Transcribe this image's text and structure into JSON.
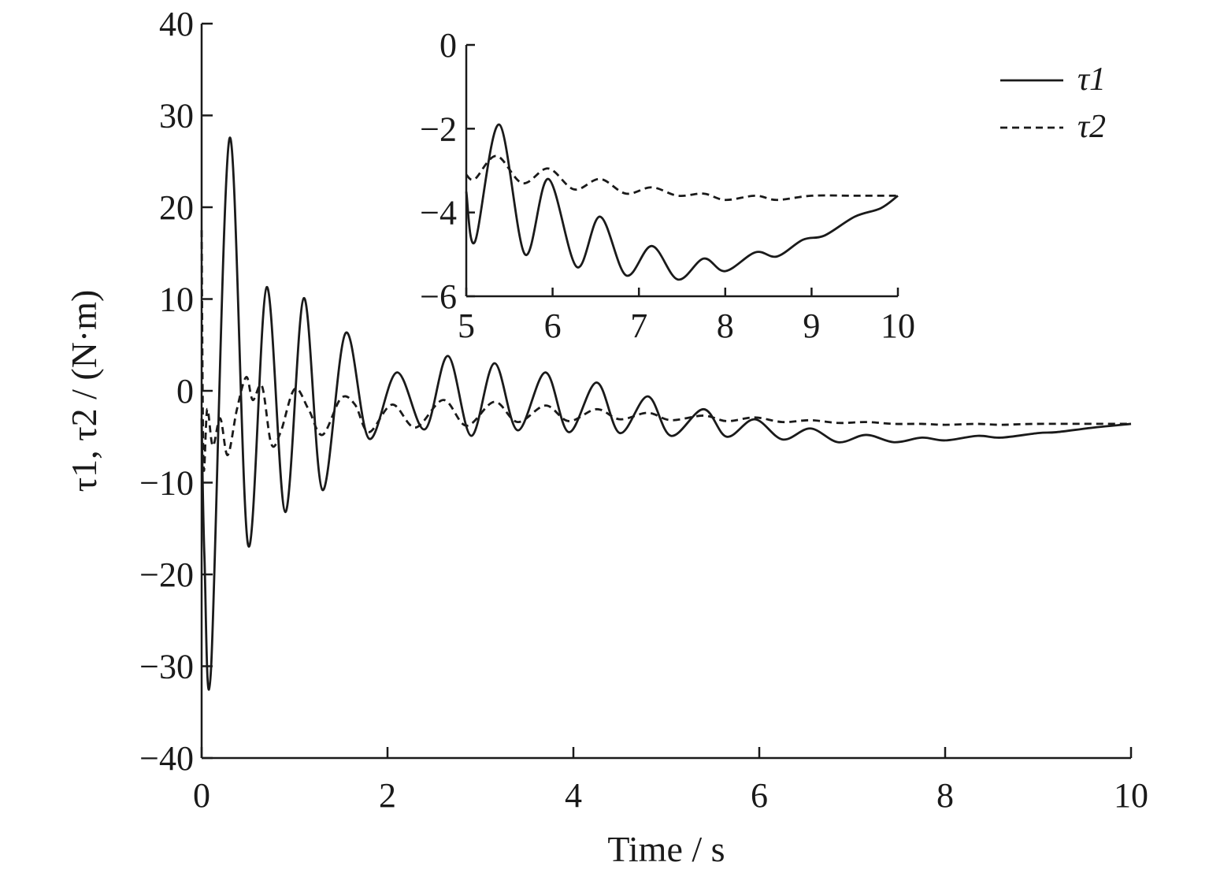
{
  "chart_data": [
    {
      "type": "line",
      "panel": "main",
      "xlabel": "Time / s",
      "ylabel": "τ1, τ2 / (N·m)",
      "xlim": [
        0,
        10
      ],
      "ylim": [
        -40,
        40
      ],
      "xticks": [
        "0",
        "2",
        "4",
        "6",
        "8",
        "10"
      ],
      "yticks": [
        "−40",
        "−30",
        "−20",
        "−10",
        "0",
        "10",
        "20",
        "30",
        "40"
      ],
      "grid": false,
      "legend_position": "top-right",
      "series": [
        {
          "name": "τ1",
          "style": "solid",
          "x": [
            0,
            0.03,
            0.1,
            0.3,
            0.5,
            0.7,
            0.9,
            1.1,
            1.3,
            1.55,
            1.8,
            2.1,
            2.4,
            2.65,
            2.9,
            3.15,
            3.4,
            3.7,
            3.95,
            4.25,
            4.5,
            4.8,
            5.05,
            5.4,
            5.65,
            5.95,
            6.25,
            6.55,
            6.85,
            7.15,
            7.45,
            7.75,
            8.0,
            8.35,
            8.6,
            9.0,
            9.2,
            9.6,
            10.0
          ],
          "y": [
            -3,
            -18,
            -30.5,
            27.5,
            -16.8,
            11.3,
            -13.2,
            10.1,
            -10.8,
            6.3,
            -5.2,
            2.0,
            -4.2,
            3.8,
            -4.9,
            3.0,
            -4.3,
            2.0,
            -4.5,
            0.9,
            -4.6,
            -0.6,
            -4.9,
            -2.0,
            -5.0,
            -3.1,
            -5.3,
            -4.1,
            -5.6,
            -4.8,
            -5.6,
            -5.1,
            -5.4,
            -4.9,
            -5.1,
            -4.6,
            -4.5,
            -4.0,
            -3.6
          ]
        },
        {
          "name": "τ2",
          "style": "dashed",
          "x": [
            0,
            0.02,
            0.06,
            0.12,
            0.2,
            0.28,
            0.38,
            0.48,
            0.55,
            0.65,
            0.75,
            0.85,
            1.0,
            1.15,
            1.3,
            1.5,
            1.65,
            1.8,
            2.05,
            2.3,
            2.6,
            2.85,
            3.15,
            3.4,
            3.7,
            3.95,
            4.25,
            4.5,
            4.8,
            5.05,
            5.4,
            5.65,
            5.95,
            6.25,
            6.55,
            6.85,
            7.15,
            7.45,
            7.75,
            8.0,
            8.35,
            8.6,
            9.0,
            10.0
          ],
          "y": [
            17.5,
            -8,
            -2,
            -6,
            -3,
            -7,
            -2,
            1.5,
            -1,
            0.5,
            -5.8,
            -4.5,
            0.2,
            -2,
            -4.8,
            -0.8,
            -1.5,
            -4.5,
            -1.5,
            -4.0,
            -1.0,
            -3.8,
            -1.2,
            -3.4,
            -1.6,
            -3.3,
            -2.0,
            -3.1,
            -2.4,
            -3.2,
            -2.7,
            -3.3,
            -2.9,
            -3.4,
            -3.2,
            -3.5,
            -3.4,
            -3.6,
            -3.6,
            -3.7,
            -3.6,
            -3.7,
            -3.6,
            -3.6
          ]
        }
      ]
    },
    {
      "type": "line",
      "panel": "inset",
      "xlim": [
        5,
        10
      ],
      "ylim": [
        -6,
        0
      ],
      "xticks": [
        "5",
        "6",
        "7",
        "8",
        "9",
        "10"
      ],
      "yticks": [
        "−6",
        "−4",
        "−2",
        "0"
      ],
      "grid": false,
      "series": [
        {
          "name": "τ1",
          "style": "solid",
          "x": [
            5.0,
            5.1,
            5.38,
            5.68,
            5.95,
            6.28,
            6.55,
            6.85,
            7.15,
            7.45,
            7.75,
            8.0,
            8.35,
            8.6,
            8.9,
            9.15,
            9.5,
            9.8,
            10.0
          ],
          "y": [
            -3.5,
            -4.7,
            -1.9,
            -5.0,
            -3.2,
            -5.3,
            -4.1,
            -5.5,
            -4.8,
            -5.6,
            -5.1,
            -5.4,
            -4.95,
            -5.05,
            -4.65,
            -4.55,
            -4.1,
            -3.9,
            -3.6
          ]
        },
        {
          "name": "τ2",
          "style": "dashed",
          "x": [
            5.0,
            5.1,
            5.35,
            5.65,
            5.95,
            6.25,
            6.55,
            6.85,
            7.15,
            7.45,
            7.75,
            8.0,
            8.35,
            8.6,
            9.0,
            9.5,
            10.0
          ],
          "y": [
            -3.1,
            -3.2,
            -2.65,
            -3.3,
            -2.95,
            -3.45,
            -3.2,
            -3.55,
            -3.4,
            -3.6,
            -3.55,
            -3.7,
            -3.6,
            -3.7,
            -3.6,
            -3.6,
            -3.6
          ]
        }
      ]
    }
  ]
}
